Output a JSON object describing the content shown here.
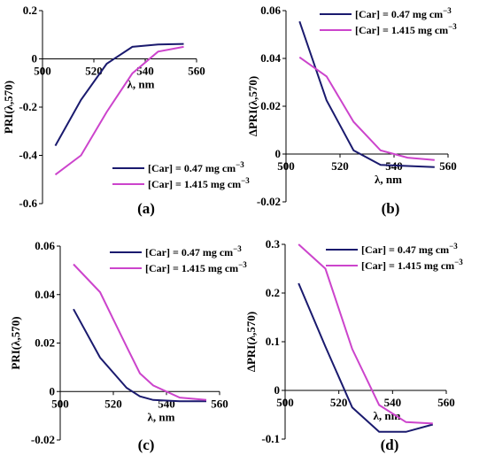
{
  "legend": {
    "series_a": "[Car] = 0.47 mg cm",
    "series_b": "[Car] = 1.415 mg cm",
    "superscript": "−3"
  },
  "colors": {
    "series_a": "#1a1a6e",
    "series_b": "#cc44cc"
  },
  "chart_data": [
    {
      "type": "line",
      "panel_label": "(a)",
      "ylabel": "PRI(λ,570)",
      "xlabel": "λ, nm",
      "xlim": [
        500,
        560
      ],
      "ylim": [
        -0.6,
        0.2
      ],
      "xticks": [
        500,
        520,
        540,
        560
      ],
      "yticks": [
        0.2,
        0,
        -0.2,
        -0.4,
        -0.6
      ],
      "ytick_labels": [
        "0.2",
        "0",
        "-0.2",
        "-0.4",
        "-0.6"
      ],
      "x_axis_at": 0,
      "legend_position": "bottom-right",
      "x": [
        505,
        515,
        525,
        535,
        545,
        555
      ],
      "series": [
        {
          "name": "[Car] = 0.47 mg cm−3",
          "values": [
            -0.36,
            -0.17,
            -0.02,
            0.05,
            0.06,
            0.062
          ]
        },
        {
          "name": "[Car] = 1.415 mg cm−3",
          "values": [
            -0.48,
            -0.4,
            -0.22,
            -0.06,
            0.03,
            0.05
          ]
        }
      ]
    },
    {
      "type": "line",
      "panel_label": "(b)",
      "ylabel": "ΔPRI(λ,570)",
      "xlabel": "λ, nm",
      "xlim": [
        500,
        560
      ],
      "ylim": [
        -0.02,
        0.06
      ],
      "xticks": [
        500,
        520,
        540,
        560
      ],
      "yticks": [
        0.06,
        0.04,
        0.02,
        0,
        -0.02
      ],
      "ytick_labels": [
        "0.06",
        "0.04",
        "0.02",
        "0",
        "-0.02"
      ],
      "x_axis_at": 0,
      "legend_position": "top-right",
      "x": [
        505,
        515,
        525,
        535,
        545,
        555
      ],
      "series": [
        {
          "name": "[Car] = 0.47 mg cm−3",
          "values": [
            0.0555,
            0.0225,
            0.0015,
            -0.0045,
            -0.005,
            -0.0055
          ]
        },
        {
          "name": "[Car] = 1.415 mg cm−3",
          "values": [
            0.0405,
            0.0325,
            0.0135,
            0.0015,
            -0.0015,
            -0.0025
          ]
        }
      ]
    },
    {
      "type": "line",
      "panel_label": "(c)",
      "ylabel": "PRI(λ,570)",
      "xlabel": "λ, nm",
      "xlim": [
        500,
        560
      ],
      "ylim": [
        -0.02,
        0.06
      ],
      "xticks": [
        500,
        520,
        540,
        560
      ],
      "yticks": [
        0.06,
        0.04,
        0.02,
        0,
        -0.02
      ],
      "ytick_labels": [
        "0.06",
        "0.04",
        "0.02",
        "0",
        "-0.02"
      ],
      "x_axis_at": 0,
      "legend_position": "top-right",
      "x": [
        505,
        515,
        525,
        530,
        535,
        545,
        555
      ],
      "series": [
        {
          "name": "[Car] = 0.47 mg cm−3",
          "values": [
            0.034,
            0.014,
            0.0015,
            -0.002,
            -0.0035,
            -0.004,
            -0.004
          ]
        },
        {
          "name": "[Car] = 1.415 mg cm−3",
          "values": [
            0.0525,
            0.041,
            0.0185,
            0.0075,
            0.0025,
            -0.0025,
            -0.0035
          ]
        }
      ]
    },
    {
      "type": "line",
      "panel_label": "(d)",
      "ylabel": "ΔPRI(λ,570)",
      "xlabel": "λ, nm",
      "xlim": [
        500,
        560
      ],
      "ylim": [
        -0.1,
        0.3
      ],
      "xticks": [
        500,
        520,
        540,
        560
      ],
      "yticks": [
        0.3,
        0.2,
        0.1,
        0,
        -0.1
      ],
      "ytick_labels": [
        "0.3",
        "0.2",
        "0.1",
        "0",
        "-0.1"
      ],
      "x_axis_at": 0,
      "legend_position": "top-right",
      "x": [
        505,
        515,
        525,
        535,
        545,
        555
      ],
      "series": [
        {
          "name": "[Car] = 0.47 mg cm−3",
          "values": [
            0.22,
            0.09,
            -0.035,
            -0.085,
            -0.085,
            -0.07
          ]
        },
        {
          "name": "[Car] = 1.415 mg cm−3",
          "values": [
            0.3,
            0.25,
            0.085,
            -0.03,
            -0.065,
            -0.068
          ]
        }
      ]
    }
  ]
}
